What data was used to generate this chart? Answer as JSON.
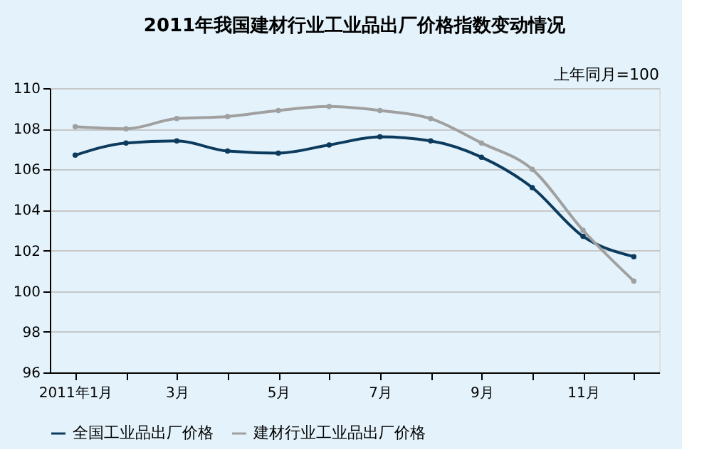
{
  "chart_data": {
    "type": "line",
    "title": "2011年我国建材行业工业品出厂价格指数变动情况",
    "annotations": [
      "上年同月=100"
    ],
    "categories": [
      "2011年1月",
      null,
      "3月",
      null,
      "5月",
      null,
      "7月",
      null,
      "9月",
      null,
      "11月",
      null
    ],
    "series": [
      {
        "name": "全国工业品出厂价格",
        "color": "#0d3b5e",
        "values": [
          106.7,
          107.3,
          107.4,
          106.9,
          106.8,
          107.2,
          107.6,
          107.4,
          106.6,
          105.1,
          102.7,
          101.7
        ]
      },
      {
        "name": "建材行业工业品出厂价格",
        "color": "#a0a0a0",
        "values": [
          108.1,
          108.0,
          108.5,
          108.6,
          108.9,
          109.1,
          108.9,
          108.5,
          107.3,
          106.0,
          103.0,
          100.5
        ]
      }
    ],
    "ylim": [
      96,
      110
    ],
    "yticks": [
      96,
      98,
      100,
      102,
      104,
      106,
      108,
      110
    ],
    "grid": "y",
    "legend": "bottom",
    "marker": "circle",
    "line_style": "solid"
  }
}
